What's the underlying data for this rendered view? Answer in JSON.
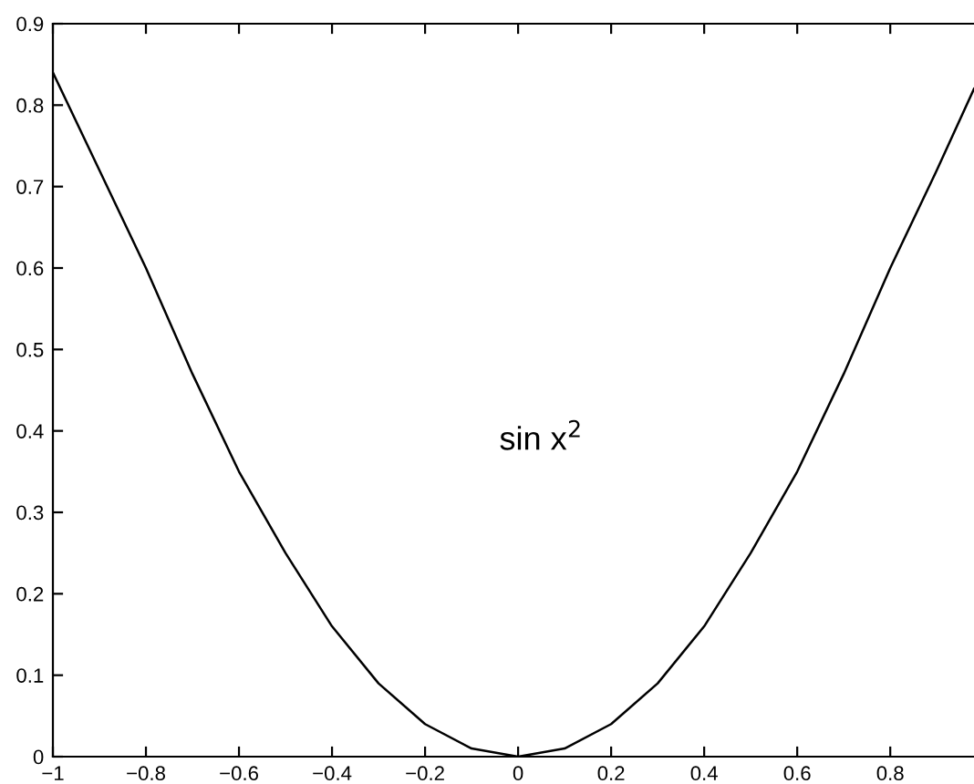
{
  "chart_data": {
    "type": "line",
    "x": [
      -1,
      -0.9,
      -0.8,
      -0.7,
      -0.6,
      -0.5,
      -0.4,
      -0.3,
      -0.2,
      -0.1,
      0,
      0.1,
      0.2,
      0.3,
      0.4,
      0.5,
      0.6,
      0.7,
      0.8,
      0.9,
      0.98
    ],
    "series": [
      {
        "color": "#000000",
        "values": [
          0.84,
          0.72,
          0.6,
          0.47,
          0.35,
          0.25,
          0.16,
          0.09,
          0.04,
          0.01,
          0,
          0.01,
          0.04,
          0.09,
          0.16,
          0.25,
          0.35,
          0.47,
          0.6,
          0.72,
          0.82
        ]
      }
    ],
    "xlim": [
      -1,
      0.98
    ],
    "ylim": [
      0,
      0.9
    ],
    "xticks": [
      {
        "value": -1,
        "label": "−1"
      },
      {
        "value": -0.8,
        "label": "−0.8"
      },
      {
        "value": -0.6,
        "label": "−0.6"
      },
      {
        "value": -0.4,
        "label": "−0.4"
      },
      {
        "value": -0.2,
        "label": "−0.2"
      },
      0,
      0.2,
      0.4,
      0.6,
      0.8
    ],
    "yticks": [
      0,
      0.1,
      0.2,
      0.3,
      0.4,
      0.5,
      0.6,
      0.7,
      0.8,
      0.9
    ],
    "annotations": [
      "sin x$^{2}$"
    ],
    "grid": false,
    "legend": false,
    "marker": "none",
    "line_style": "solid"
  }
}
